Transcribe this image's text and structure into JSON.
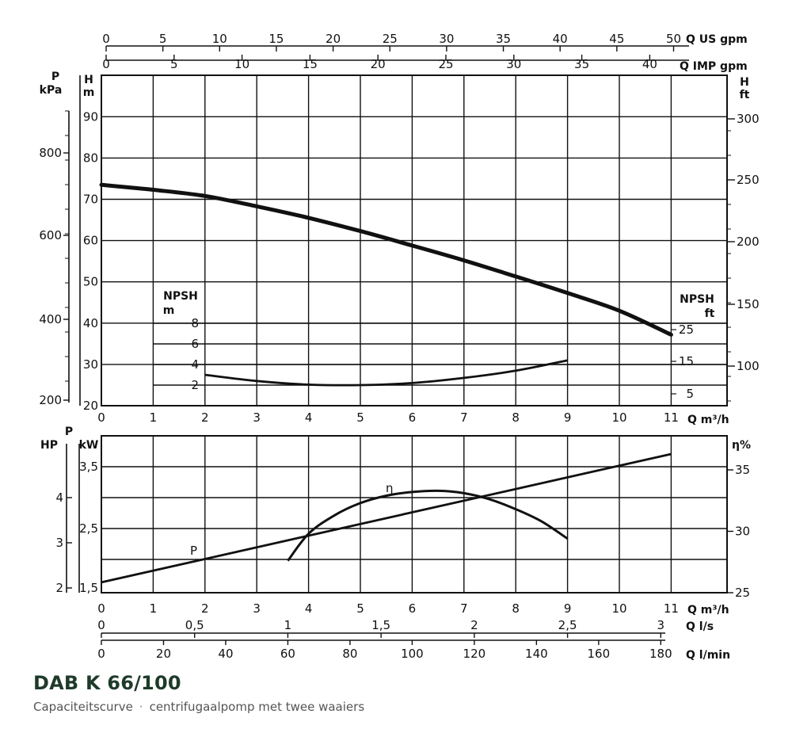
{
  "caption": {
    "title": "DAB K 66/100",
    "subtitle_left": "Capaciteitscurve",
    "separator": "·",
    "subtitle_right": "centrifugaalpomp met twee waaiers"
  },
  "chart_data": [
    {
      "type": "line",
      "panel": "head",
      "x_range": [
        0,
        11
      ],
      "x_ticks": [
        "0",
        "1",
        "2",
        "3",
        "4",
        "5",
        "6",
        "7",
        "8",
        "9",
        "10",
        "11"
      ],
      "xlabel": "Q m³/h",
      "top_axes": [
        {
          "label": "Q US gpm",
          "range": [
            0,
            50
          ],
          "ticks": [
            "0",
            "5",
            "10",
            "15",
            "20",
            "25",
            "30",
            "35",
            "40",
            "45",
            "50"
          ]
        },
        {
          "label": "Q IMP gpm",
          "range": [
            0,
            40
          ],
          "ticks": [
            "0",
            "5",
            "10",
            "15",
            "20",
            "25",
            "30",
            "35",
            "40"
          ]
        }
      ],
      "left_axes": [
        {
          "label_top": "P",
          "label_bottom": "kPa",
          "ticks": [
            "200",
            "400",
            "600",
            "800"
          ]
        },
        {
          "label_top": "H",
          "label_bottom": "m",
          "range": [
            20,
            100
          ],
          "ticks": [
            "20",
            "30",
            "40",
            "50",
            "60",
            "70",
            "80",
            "90"
          ]
        }
      ],
      "right_axis": {
        "label_top": "H",
        "label_bottom": "ft",
        "ticks": [
          "100",
          "150",
          "200",
          "250",
          "300"
        ]
      },
      "npsh_left": {
        "label_top": "NPSH",
        "label_bottom": "m",
        "ticks": [
          "2",
          "4",
          "6",
          "8"
        ]
      },
      "npsh_right": {
        "label_top": "NPSH",
        "label_bottom": "ft",
        "ticks": [
          "5",
          "15",
          "25"
        ]
      },
      "series": [
        {
          "name": "H",
          "x": [
            0,
            1,
            2,
            3,
            4,
            5,
            6,
            7,
            8,
            9,
            10,
            11
          ],
          "y": [
            73.5,
            72.3,
            70.8,
            68.3,
            65.5,
            62.3,
            58.8,
            55.2,
            51.3,
            47.3,
            43,
            37.2
          ]
        },
        {
          "name": "NPSH",
          "x": [
            2,
            3,
            4,
            5,
            6,
            7,
            8,
            9
          ],
          "y": [
            3,
            2.4,
            2.05,
            2.0,
            2.2,
            2.7,
            3.4,
            4.4
          ]
        }
      ],
      "grid": true
    },
    {
      "type": "line",
      "panel": "power_efficiency",
      "x_range": [
        0,
        11
      ],
      "x_ticks": [
        "0",
        "1",
        "2",
        "3",
        "4",
        "5",
        "6",
        "7",
        "8",
        "9",
        "10",
        "11"
      ],
      "xlabel": "Q m³/h",
      "bottom_axes": [
        {
          "label": "Q l/s",
          "range": [
            0,
            3
          ],
          "ticks": [
            "0",
            "0,5",
            "1",
            "1,5",
            "2",
            "2,5",
            "3"
          ]
        },
        {
          "label": "Q l/min",
          "range": [
            0,
            180
          ],
          "ticks": [
            "0",
            "20",
            "40",
            "60",
            "80",
            "100",
            "120",
            "140",
            "160",
            "180"
          ]
        }
      ],
      "left_axes": [
        {
          "label_top": "HP",
          "ticks": [
            "2",
            "3",
            "4"
          ]
        },
        {
          "label_top": "P",
          "label_bottom": "kW",
          "range": [
            1.5,
            4.0
          ],
          "ticks": [
            "1,5",
            "2,5",
            "3,5"
          ]
        }
      ],
      "right_axis": {
        "label_top": "η%",
        "range": [
          25,
          37.5
        ],
        "ticks": [
          "25",
          "30",
          "35"
        ]
      },
      "series": [
        {
          "name": "P",
          "x": [
            0,
            11
          ],
          "y": [
            1.63,
            3.72
          ]
        },
        {
          "name": "η",
          "x": [
            3.6,
            4.0,
            4.5,
            5.0,
            5.5,
            6.0,
            6.5,
            7.0,
            7.5,
            8.0,
            8.5,
            9.0
          ],
          "y": [
            27.6,
            29.8,
            31.3,
            32.3,
            32.9,
            33.2,
            33.3,
            33.1,
            32.6,
            31.8,
            30.8,
            29.4
          ]
        }
      ],
      "curve_labels": [
        "P",
        "η"
      ],
      "grid": true
    }
  ]
}
